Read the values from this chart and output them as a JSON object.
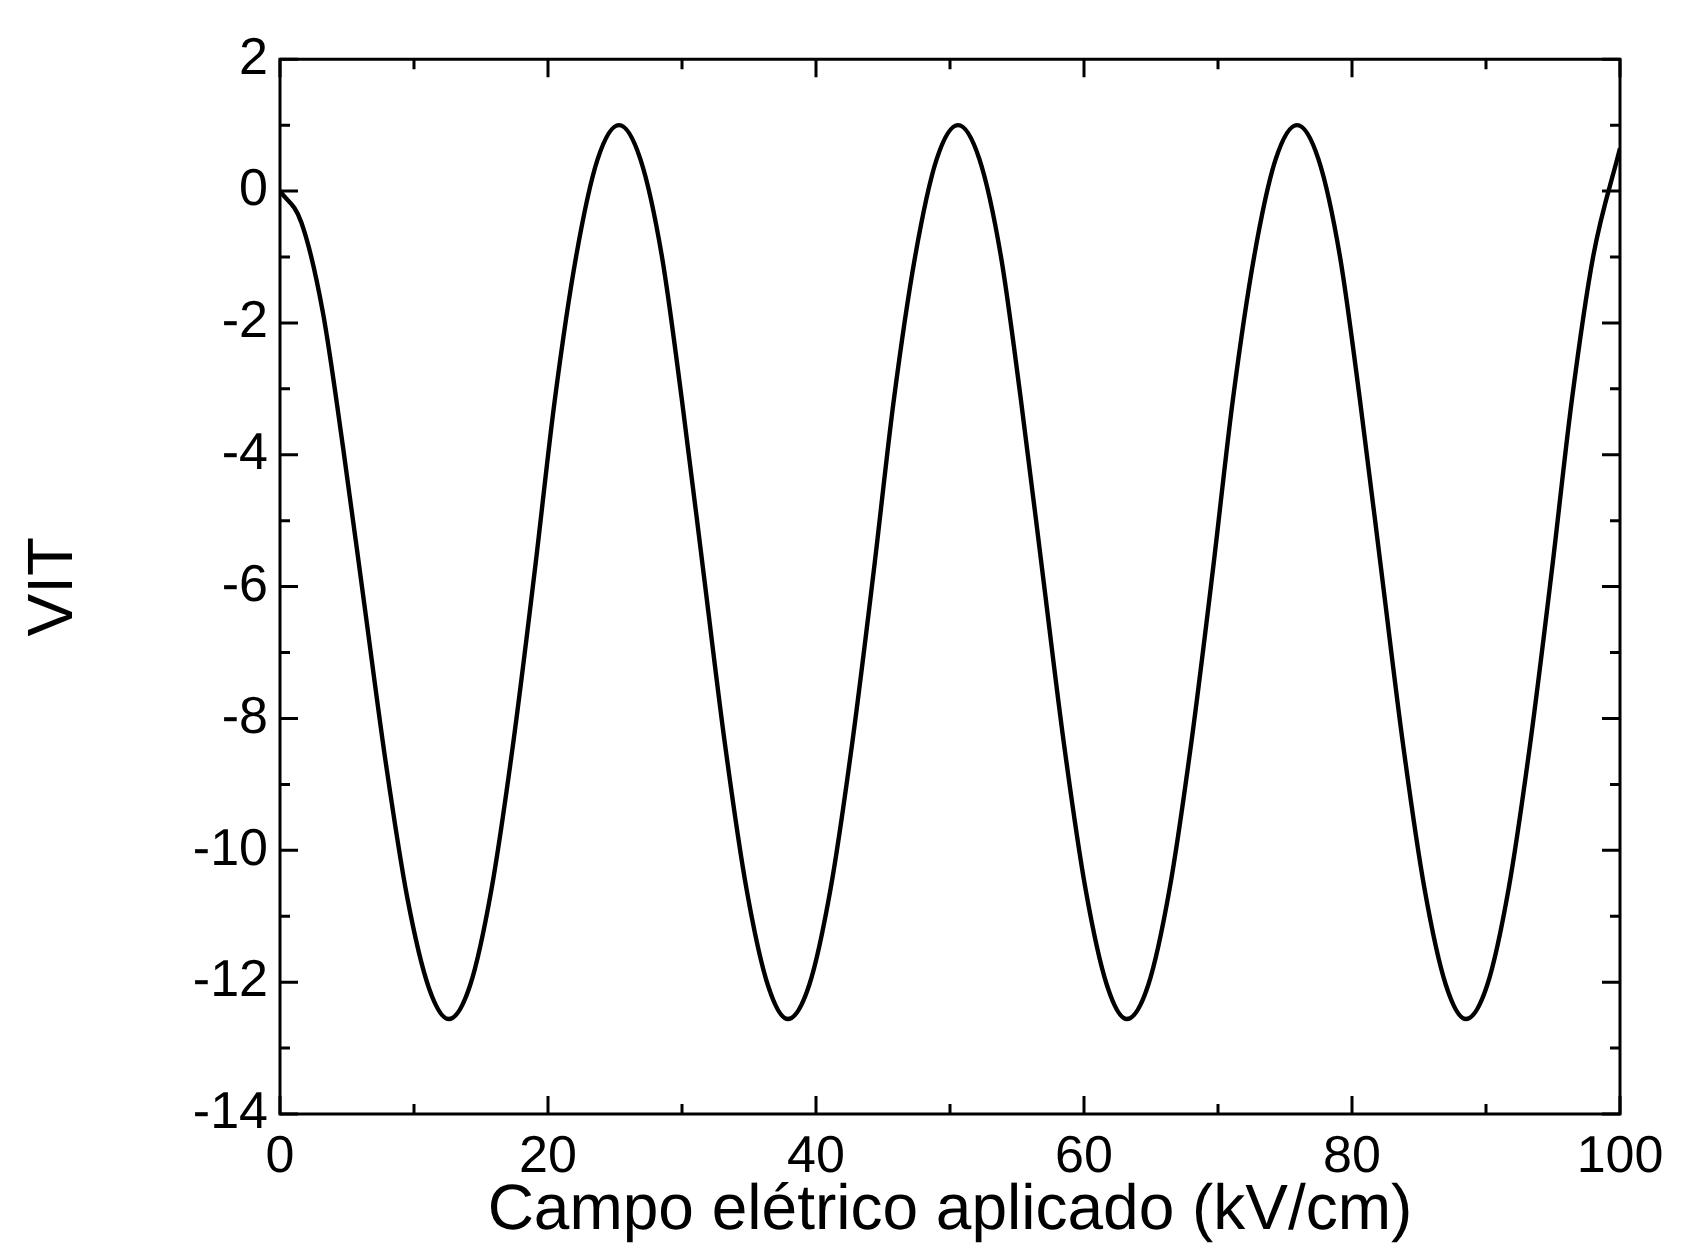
{
  "chart_data": {
    "type": "line",
    "xlabel": "Campo elétrico aplicado (kV/cm)",
    "ylabel": "VIT",
    "xlim": [
      0,
      100
    ],
    "ylim": [
      -14,
      2
    ],
    "xticks": [
      0,
      {
        "value": 10,
        "label": null
      },
      20,
      {
        "value": 30,
        "label": null
      },
      40,
      {
        "value": 50,
        "label": null
      },
      60,
      {
        "value": 70,
        "label": null
      },
      80,
      {
        "value": 90,
        "label": null
      },
      100
    ],
    "yticks": [
      -14,
      {
        "value": -13,
        "label": null
      },
      -12,
      {
        "value": -11,
        "label": null
      },
      -10,
      {
        "value": -9,
        "label": null
      },
      -8,
      {
        "value": -7,
        "label": null
      },
      -6,
      {
        "value": -5,
        "label": null
      },
      -4,
      {
        "value": -3,
        "label": null
      },
      -2,
      {
        "value": -1,
        "label": null
      },
      0,
      {
        "value": 1,
        "label": null
      },
      2
    ],
    "grid": false,
    "legend": false,
    "marker": "none",
    "line_style": "solid",
    "series": [
      {
        "color": "#000000",
        "x": [
          0,
          1.6,
          3.2,
          4.7,
          6.3,
          7.9,
          9.5,
          11.1,
          12.6,
          14.2,
          15.8,
          17.4,
          19.0,
          20.5,
          22.1,
          23.7,
          25.3,
          26.9,
          28.5,
          30.0,
          31.6,
          33.2,
          34.8,
          36.4,
          37.9,
          39.5,
          41.1,
          42.7,
          44.3,
          45.8,
          47.4,
          49.0,
          50.6,
          52.2,
          53.8,
          55.3,
          56.9,
          58.5,
          60.1,
          61.7,
          63.2,
          64.8,
          66.4,
          68.0,
          69.6,
          71.1,
          72.7,
          74.3,
          75.9,
          77.5,
          79.1,
          80.6,
          82.2,
          83.8,
          85.4,
          87.0,
          88.5,
          90.1,
          91.7,
          93.3,
          94.9,
          96.4,
          98.0,
          100
        ],
        "values": [
          0,
          -0.48,
          -1.84,
          -3.88,
          -6.28,
          -8.68,
          -10.72,
          -12.08,
          -12.56,
          -12.04,
          -10.57,
          -8.38,
          -5.78,
          -3.18,
          -0.99,
          0.48,
          1.0,
          0.48,
          -0.99,
          -3.18,
          -5.78,
          -8.38,
          -10.57,
          -12.04,
          -12.56,
          -12.04,
          -10.57,
          -8.38,
          -5.78,
          -3.18,
          -0.99,
          0.48,
          1.0,
          0.48,
          -0.99,
          -3.18,
          -5.78,
          -8.38,
          -10.57,
          -12.04,
          -12.56,
          -12.04,
          -10.57,
          -8.38,
          -5.78,
          -3.18,
          -0.99,
          0.48,
          1.0,
          0.48,
          -0.99,
          -3.18,
          -5.78,
          -8.38,
          -10.57,
          -12.04,
          -12.56,
          -12.04,
          -10.57,
          -8.38,
          -5.78,
          -3.18,
          -0.99,
          0.65
        ]
      }
    ]
  }
}
